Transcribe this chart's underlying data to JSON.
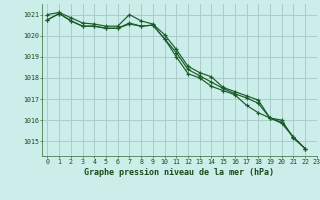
{
  "title": "Graphe pression niveau de la mer (hPa)",
  "background_color": "#cceeea",
  "grid_color": "#aacccc",
  "line_color": "#1a5c28",
  "xlim": [
    -0.5,
    23
  ],
  "ylim": [
    1014.3,
    1021.5
  ],
  "yticks": [
    1015,
    1016,
    1017,
    1018,
    1019,
    1020,
    1021
  ],
  "xticks": [
    0,
    1,
    2,
    3,
    4,
    5,
    6,
    7,
    8,
    9,
    10,
    11,
    12,
    13,
    14,
    15,
    16,
    17,
    18,
    19,
    20,
    21,
    22,
    23
  ],
  "series": [
    [
      1021.0,
      1021.1,
      1020.85,
      1020.6,
      1020.55,
      1020.45,
      1020.45,
      1021.0,
      1020.7,
      1020.55,
      1020.05,
      1019.35,
      1018.55,
      1018.25,
      1018.05,
      1017.55,
      1017.35,
      1017.15,
      1016.95,
      1016.1,
      1016.0,
      1015.15,
      1014.65
    ],
    [
      1020.75,
      1021.05,
      1020.7,
      1020.45,
      1020.45,
      1020.35,
      1020.35,
      1020.6,
      1020.45,
      1020.5,
      1019.85,
      1019.2,
      1018.4,
      1018.1,
      1017.8,
      1017.5,
      1017.25,
      1017.05,
      1016.8,
      1016.1,
      1015.85,
      1015.2,
      1014.65
    ],
    [
      1020.75,
      1021.05,
      1020.7,
      1020.45,
      1020.45,
      1020.35,
      1020.35,
      1020.55,
      1020.45,
      1020.5,
      1019.85,
      1019.0,
      1018.2,
      1018.0,
      1017.6,
      1017.4,
      1017.2,
      1016.7,
      1016.35,
      1016.1,
      1015.9,
      1015.2,
      1014.65
    ]
  ]
}
